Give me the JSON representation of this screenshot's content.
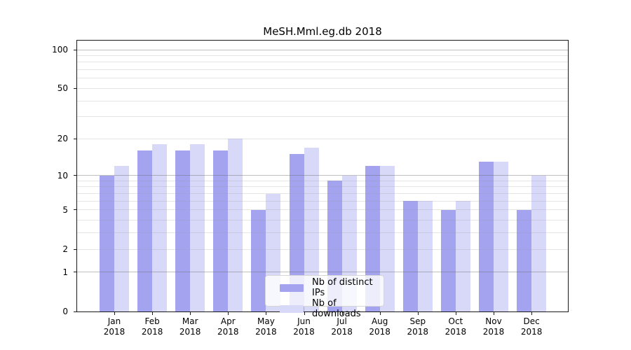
{
  "title": "MeSH.Mml.eg.db 2018",
  "chart_data": {
    "type": "bar",
    "title": "MeSH.Mml.eg.db 2018",
    "categories": [
      "Jan 2018",
      "Feb 2018",
      "Mar 2018",
      "Apr 2018",
      "May 2018",
      "Jun 2018",
      "Jul 2018",
      "Aug 2018",
      "Sep 2018",
      "Oct 2018",
      "Nov 2018",
      "Dec 2018"
    ],
    "category_line1": [
      "Jan",
      "Feb",
      "Mar",
      "Apr",
      "May",
      "Jun",
      "Jul",
      "Aug",
      "Sep",
      "Oct",
      "Nov",
      "Dec"
    ],
    "category_line2": [
      "2018",
      "2018",
      "2018",
      "2018",
      "2018",
      "2018",
      "2018",
      "2018",
      "2018",
      "2018",
      "2018",
      "2018"
    ],
    "series": [
      {
        "name": "Nb of distinct IPs",
        "color": "#a3a3f0",
        "values": [
          10,
          16,
          16,
          16,
          5,
          15,
          9,
          12,
          6,
          5,
          13,
          5
        ]
      },
      {
        "name": "Nb of downloads",
        "color": "#d8d8f9",
        "values": [
          12,
          18,
          18,
          20,
          7,
          17,
          10,
          12,
          6,
          6,
          13,
          10
        ]
      }
    ],
    "xlabel": "",
    "ylabel": "",
    "yscale": "log1p",
    "ylim": [
      0,
      118
    ],
    "y_tick_values": [
      0,
      1,
      2,
      5,
      10,
      20,
      50,
      100
    ],
    "grid": true,
    "grid_decade_lines": [
      1,
      10,
      100
    ],
    "grid_minor_lines": [
      2,
      3,
      4,
      5,
      6,
      7,
      8,
      9,
      20,
      30,
      40,
      50,
      60,
      70,
      80,
      90
    ],
    "legend_position": "bottom-center"
  }
}
